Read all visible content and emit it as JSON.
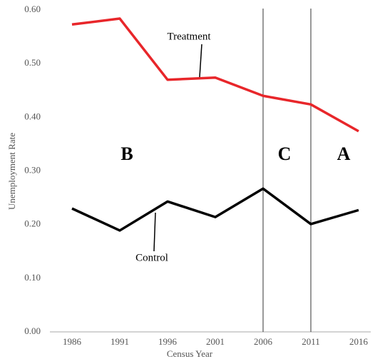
{
  "chart_data": {
    "type": "line",
    "xlabel": "Census Year",
    "ylabel": "Unemployment Rate",
    "categories": [
      "1986",
      "1991",
      "1996",
      "2001",
      "2006",
      "2011",
      "2016"
    ],
    "series": [
      {
        "name": "Treatment",
        "color": "#e8262a",
        "values": [
          0.573,
          0.584,
          0.47,
          0.474,
          0.44,
          0.424,
          0.374
        ]
      },
      {
        "name": "Control",
        "color": "#000000",
        "values": [
          0.23,
          0.189,
          0.243,
          0.214,
          0.267,
          0.201,
          0.227
        ]
      }
    ],
    "ylim": [
      0,
      0.6
    ],
    "yticks": [
      {
        "value": 0,
        "label": "0.00"
      },
      {
        "value": 0.1,
        "label": "0.10"
      },
      {
        "value": 0.2,
        "label": "0.20"
      },
      {
        "value": 0.3,
        "label": "0.30"
      },
      {
        "value": 0.4,
        "label": "0.40"
      },
      {
        "value": 0.5,
        "label": "0.50"
      },
      {
        "value": 0.6,
        "label": "0.60"
      }
    ],
    "vlines": [
      "2006",
      "2011"
    ],
    "regions": [
      "B",
      "C",
      "A"
    ]
  }
}
